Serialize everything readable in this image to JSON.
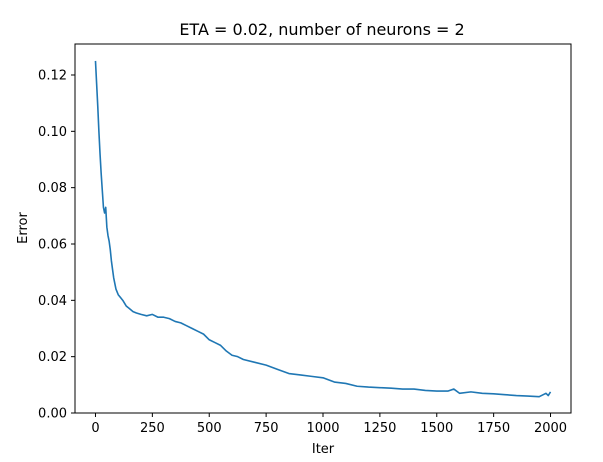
{
  "chart_data": {
    "type": "line",
    "title": "ETA = 0.02, number of neurons = 2",
    "xlabel": "Iter",
    "ylabel": "Error",
    "xlim": [
      -90,
      2090
    ],
    "ylim": [
      0,
      0.131
    ],
    "xticks": [
      0,
      250,
      500,
      750,
      1000,
      1250,
      1500,
      1750,
      2000
    ],
    "xtick_labels": [
      "0",
      "250",
      "500",
      "750",
      "1000",
      "1250",
      "1500",
      "1750",
      "2000"
    ],
    "yticks": [
      0.0,
      0.02,
      0.04,
      0.06,
      0.08,
      0.1,
      0.12
    ],
    "ytick_labels": [
      "0.00",
      "0.02",
      "0.04",
      "0.06",
      "0.08",
      "0.10",
      "0.12"
    ],
    "grid": false,
    "series": [
      {
        "color": "#1f77b4",
        "x": [
          0,
          5,
          10,
          15,
          20,
          25,
          30,
          35,
          40,
          45,
          50,
          55,
          60,
          65,
          70,
          75,
          80,
          90,
          100,
          110,
          120,
          135,
          150,
          165,
          180,
          200,
          225,
          250,
          275,
          300,
          325,
          350,
          375,
          400,
          425,
          450,
          475,
          500,
          525,
          550,
          575,
          600,
          625,
          650,
          700,
          750,
          800,
          850,
          900,
          950,
          1000,
          1050,
          1100,
          1150,
          1200,
          1250,
          1300,
          1350,
          1400,
          1450,
          1500,
          1550,
          1575,
          1600,
          1650,
          1700,
          1750,
          1800,
          1850,
          1900,
          1950,
          1980,
          1990,
          2000
        ],
        "y": [
          0.125,
          0.117,
          0.109,
          0.1,
          0.092,
          0.085,
          0.079,
          0.073,
          0.071,
          0.073,
          0.066,
          0.063,
          0.061,
          0.058,
          0.054,
          0.051,
          0.048,
          0.044,
          0.042,
          0.041,
          0.04,
          0.038,
          0.037,
          0.036,
          0.0355,
          0.035,
          0.0345,
          0.035,
          0.034,
          0.034,
          0.0335,
          0.0325,
          0.032,
          0.031,
          0.03,
          0.029,
          0.028,
          0.026,
          0.025,
          0.024,
          0.022,
          0.0205,
          0.02,
          0.019,
          0.018,
          0.017,
          0.0155,
          0.014,
          0.0135,
          0.013,
          0.0125,
          0.011,
          0.0105,
          0.0095,
          0.0092,
          0.009,
          0.0088,
          0.0085,
          0.0085,
          0.008,
          0.0078,
          0.0078,
          0.0085,
          0.007,
          0.0075,
          0.007,
          0.0068,
          0.0065,
          0.0062,
          0.006,
          0.0058,
          0.007,
          0.0062,
          0.0075
        ]
      }
    ]
  }
}
